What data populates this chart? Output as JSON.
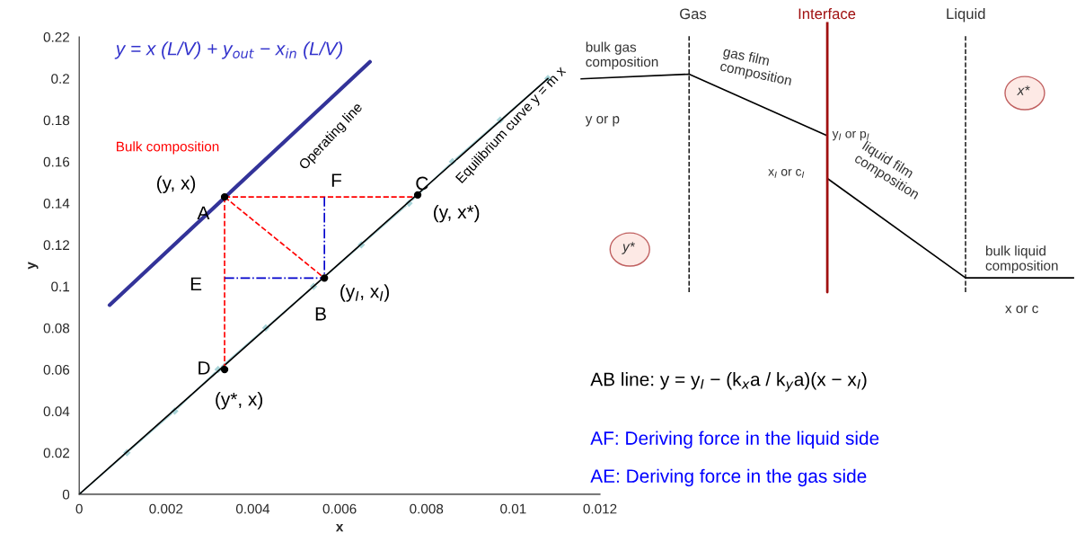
{
  "chart_data": [
    {
      "type": "line",
      "xlabel": "x",
      "ylabel": "y",
      "xlim": [
        0,
        0.012
      ],
      "ylim": [
        0,
        0.22
      ],
      "xticks": [
        0,
        0.002,
        0.004,
        0.006,
        0.008,
        0.01,
        0.012
      ],
      "yticks": [
        0,
        0.02,
        0.04,
        0.06,
        0.08,
        0.1,
        0.12,
        0.14,
        0.16,
        0.18,
        0.2,
        0.22
      ],
      "grid": false,
      "legend": false,
      "series": [
        {
          "type": "line",
          "color": "#a8d4d8",
          "marker": "diamond",
          "x": [
            0,
            0.0011,
            0.0022,
            0.0032,
            0.0043,
            0.0054,
            0.0065,
            0.0076,
            0.0086,
            0.0097,
            0.0108
          ],
          "values": [
            0,
            0.02,
            0.04,
            0.06,
            0.08,
            0.1,
            0.12,
            0.14,
            0.16,
            0.18,
            0.2
          ]
        },
        {
          "type": "line",
          "color": "#000000",
          "x": [
            0,
            0.0108
          ],
          "values": [
            0,
            0.2
          ]
        },
        {
          "type": "line",
          "color": "#333399",
          "x": [
            0.0007,
            0.0067
          ],
          "values": [
            0.091,
            0.208
          ]
        },
        {
          "type": "line",
          "color": "#ff0000",
          "line_style": "dashed",
          "x": [
            0.00335,
            0.0078
          ],
          "values": [
            0.143,
            0.143
          ]
        },
        {
          "type": "line",
          "color": "#ff0000",
          "line_style": "dashed",
          "x": [
            0.00335,
            0.00335
          ],
          "values": [
            0.143,
            0.06
          ]
        },
        {
          "type": "line",
          "color": "#ff0000",
          "line_style": "dashed",
          "x": [
            0.00335,
            0.00565
          ],
          "values": [
            0.143,
            0.104
          ]
        },
        {
          "type": "line",
          "color": "#0000cc",
          "line_style": "dashdot",
          "x": [
            0.00565,
            0.00565
          ],
          "values": [
            0.143,
            0.104
          ]
        },
        {
          "type": "line",
          "color": "#0000cc",
          "line_style": "dashdot",
          "x": [
            0.00335,
            0.00565
          ],
          "values": [
            0.104,
            0.104
          ]
        },
        {
          "type": "scatter",
          "color": "#000000",
          "marker": "circle",
          "x": [
            0.00335,
            0.00565,
            0.0078,
            0.00335
          ],
          "values": [
            0.143,
            0.104,
            0.144,
            0.06
          ]
        }
      ],
      "annotations": [
        "y = x (L/V) + y$_{out}$ − x$_{in}$ (L/V)",
        "Bulk composition",
        {
          "text": "Operating line",
          "x": 0.0048,
          "y": 0.172
        },
        "Equilibrium curve y = m x",
        {
          "text": "(y, x)",
          "x": 0.00335,
          "y": 0.143
        },
        {
          "text": "A",
          "x": 0.00335,
          "y": 0.143
        },
        {
          "text": "F",
          "x": 0.00565,
          "y": 0.143
        },
        {
          "text": "C",
          "x": 0.0078,
          "y": 0.144
        },
        {
          "text": "(y, x*)",
          "x": 0.0078,
          "y": 0.144
        },
        {
          "text": "E",
          "x": 0.00335,
          "y": 0.104
        },
        {
          "text": "(y$_{I}$, x$_{I}$)",
          "x": 0.00565,
          "y": 0.104
        },
        {
          "text": "B",
          "x": 0.00565,
          "y": 0.104
        },
        {
          "text": "D",
          "x": 0.00335,
          "y": 0.06
        },
        {
          "text": "(y*, x)",
          "x": 0.00335,
          "y": 0.06
        }
      ]
    },
    {
      "type": "other",
      "annotations": [
        "Gas",
        "Interface",
        "Liquid",
        "bulk gas\ncomposition",
        "y or p",
        "gas film\ncomposition",
        "y$_{I}$ or p$_{I}$",
        "x$_{I}$ or c$_{I}$",
        "liquid film\ncomposition",
        "bulk liquid\ncomposition",
        "x or c",
        "x*",
        "y*",
        "AB line: y = y$_{I}$ − (k$_{x}$a / k$_{y}$a)(x − x$_{I}$)",
        "AF: Deriving force in the liquid side",
        "AE: Deriving force in the gas side"
      ]
    }
  ]
}
